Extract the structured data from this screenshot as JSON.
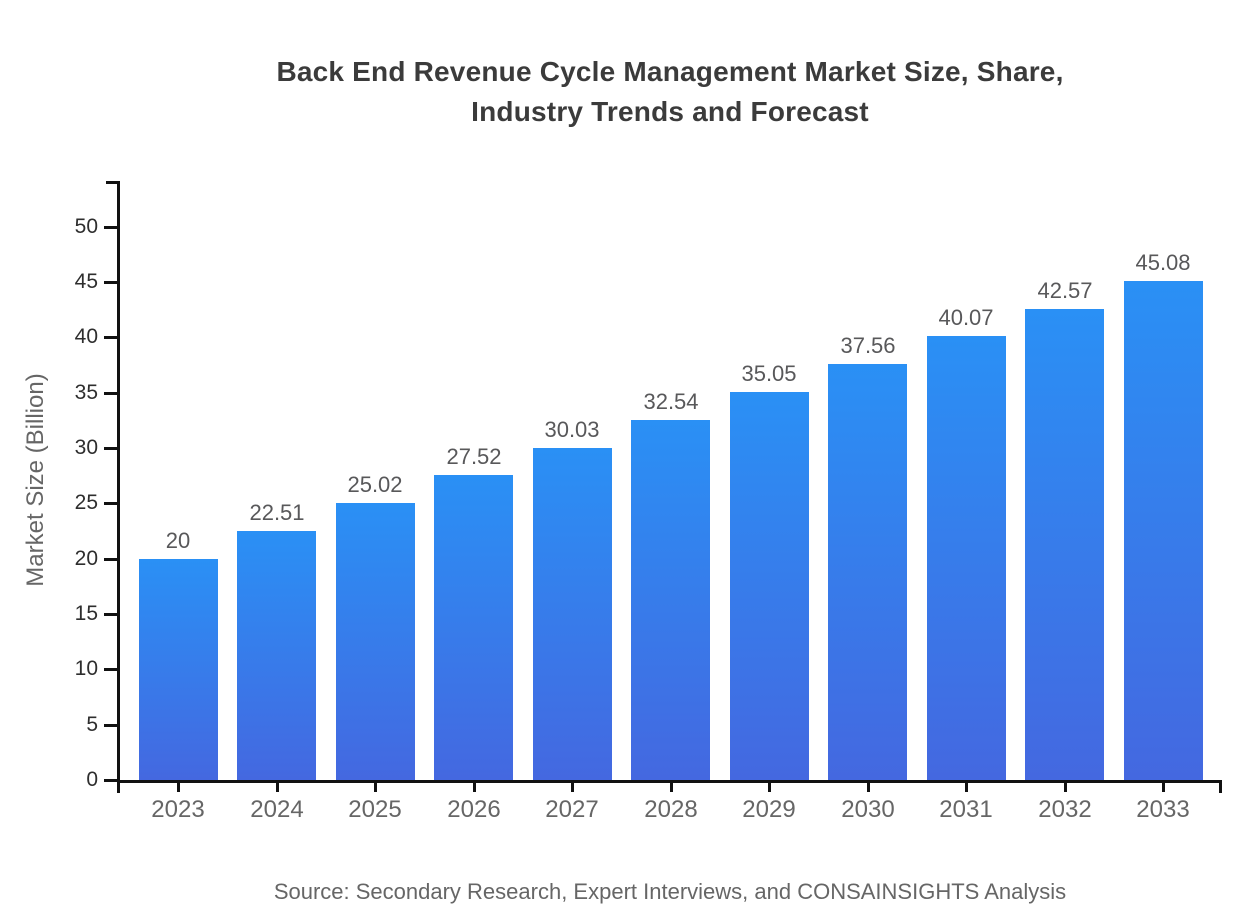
{
  "page": {
    "title_line1": "Back End Revenue Cycle Management Market Size, Share,",
    "title_line2": "Industry Trends and Forecast",
    "source": "Source: Secondary Research, Expert Interviews, and CONSAINSIGHTS Analysis"
  },
  "chart_data": {
    "type": "bar",
    "title": "Back End Revenue Cycle Management Market Size, Share, Industry Trends and Forecast",
    "xlabel": "",
    "ylabel": "Market Size (Billion)",
    "categories": [
      "2023",
      "2024",
      "2025",
      "2026",
      "2027",
      "2028",
      "2029",
      "2030",
      "2031",
      "2032",
      "2033"
    ],
    "values": [
      20,
      22.51,
      25.02,
      27.52,
      30.03,
      32.54,
      35.05,
      37.56,
      40.07,
      42.57,
      45.08
    ],
    "value_labels": [
      "20",
      "22.51",
      "25.02",
      "27.52",
      "30.03",
      "32.54",
      "35.05",
      "37.56",
      "40.07",
      "42.57",
      "45.08"
    ],
    "yticks": [
      0,
      5,
      10,
      15,
      20,
      25,
      30,
      35,
      40,
      45,
      50
    ],
    "ylim": [
      0,
      54
    ],
    "grid": false,
    "legend_position": "none",
    "colors": {
      "bar_gradient_top": "#2a90f5",
      "bar_gradient_bottom": "#4468e0",
      "axis": "#111111",
      "value_label": "#58585a",
      "x_tick_label": "#666666",
      "y_tick_label": "#2e2e2e",
      "title": "#3b3b3b",
      "axis_label": "#666666",
      "source_text": "#666666"
    }
  }
}
